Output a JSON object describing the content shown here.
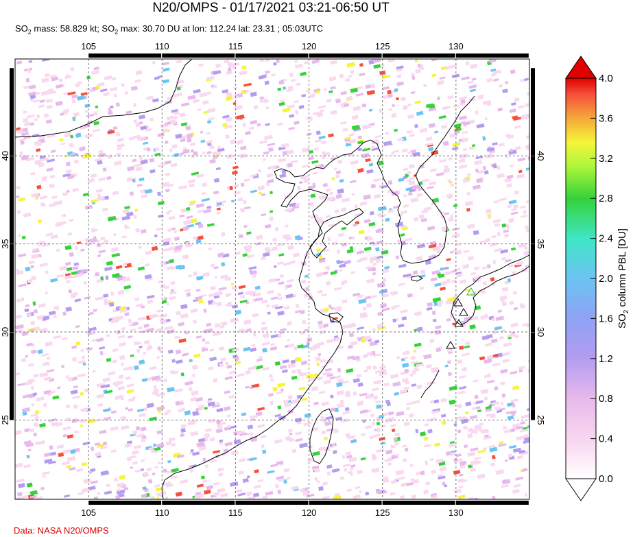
{
  "title": "N20/OMPS - 01/17/2021 03:21-06:50 UT",
  "subtitle": {
    "mass_prefix": "SO",
    "mass_sub": "2",
    "mass_text": " mass: 58.829 kt; SO",
    "max_sub": "2",
    "max_text": " max: 30.70 DU at lon: 112.24 lat: 23.31 ; 05:03UTC"
  },
  "credit": "Data: NASA N20/OMPS",
  "map": {
    "lon_range": [
      100,
      135
    ],
    "lat_range": [
      20.5,
      45.5
    ],
    "lon_ticks": [
      "105",
      "110",
      "115",
      "120",
      "125",
      "130"
    ],
    "lat_ticks": [
      "25",
      "30",
      "35",
      "40"
    ],
    "volcano_markers": [
      "green",
      "white",
      "white",
      "white",
      "white"
    ]
  },
  "colorbar": {
    "label_prefix": "SO",
    "label_sub": "2",
    "label_suffix": " column PBL [DU]",
    "ticks": [
      "0.0",
      "0.4",
      "0.8",
      "1.2",
      "1.6",
      "2.0",
      "2.4",
      "2.8",
      "3.2",
      "3.6",
      "4.0"
    ],
    "colors": [
      "#ffffff",
      "#f9d9f0",
      "#e8b9ec",
      "#b49cf0",
      "#8fa2f4",
      "#6cc4f2",
      "#3ee6c4",
      "#36d23a",
      "#aef53a",
      "#f5f53a",
      "#f5a83a",
      "#f5503a",
      "#e00000"
    ]
  }
}
